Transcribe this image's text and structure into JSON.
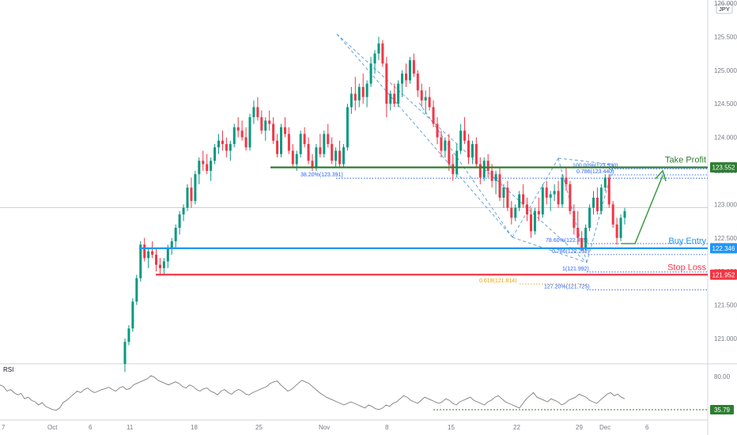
{
  "chart_data": {
    "type": "candlestick",
    "currency_label": "JPY",
    "price_axis": {
      "ticks": [
        "126.000",
        "125.500",
        "125.000",
        "124.500",
        "124.000",
        "123.500",
        "123.000",
        "122.500",
        "122.000",
        "121.500",
        "121.000"
      ],
      "range": [
        120.6,
        126.05
      ]
    },
    "rsi": {
      "label": "RSI",
      "ticks": [
        "80.00",
        "35.79"
      ],
      "values": [
        68,
        66,
        60,
        62,
        58,
        55,
        57,
        50,
        52,
        48,
        46,
        42,
        45,
        40,
        38,
        36,
        35,
        38,
        45,
        48,
        52,
        56,
        60,
        58,
        62,
        64,
        60,
        58,
        60,
        62,
        63,
        65,
        62,
        60,
        64,
        66,
        62,
        63,
        68,
        70,
        72,
        74,
        76,
        80,
        78,
        74,
        72,
        70,
        68,
        70,
        72,
        70,
        66,
        64,
        68,
        66,
        62,
        60,
        63,
        64,
        60,
        58,
        55,
        60,
        62,
        58,
        56,
        60,
        62,
        60,
        56,
        55,
        58,
        60,
        62,
        64,
        66,
        70,
        72,
        73,
        68,
        64,
        60,
        62,
        66,
        70,
        74,
        72,
        70,
        66,
        62,
        58,
        55,
        52,
        50,
        48,
        46,
        44,
        42,
        44,
        46,
        44,
        42,
        40,
        38,
        42,
        40,
        37,
        36,
        38,
        42,
        40,
        44,
        46,
        50,
        54,
        52,
        48,
        46,
        44,
        48,
        52,
        50,
        48,
        46,
        44,
        46,
        50,
        48,
        44,
        42,
        46,
        48,
        50,
        52,
        48,
        46,
        44,
        42,
        46,
        48,
        52,
        54,
        50,
        46,
        44,
        42,
        40,
        38,
        44,
        50,
        54,
        58,
        52,
        50,
        48,
        46,
        50,
        48,
        46,
        42,
        44,
        48,
        50,
        52,
        56,
        54,
        52,
        48,
        46,
        44,
        48,
        52,
        56,
        58,
        54,
        56,
        52,
        50
      ]
    },
    "x_axis_labels": [
      "7",
      "Oct",
      "6",
      "11",
      "18",
      "25",
      "Nov",
      "8",
      "15",
      "22",
      "29",
      "Dec",
      "6"
    ],
    "levels": [
      {
        "name": "Take Profit",
        "value": 123.552,
        "label": "123.552",
        "color": "#2e7d32"
      },
      {
        "name": "Buy Entry",
        "value": 122.346,
        "label": "122.346",
        "color": "#2196f3"
      },
      {
        "name": "Stop Loss",
        "value": 121.952,
        "label": "121.952",
        "color": "#f23645"
      }
    ],
    "reference_price": 122.95,
    "fib_labels": [
      {
        "text": "38.20%(123.391)",
        "value": 123.391,
        "color": "#2962ff"
      },
      {
        "text": "100.00%(123.530)",
        "value": 123.53,
        "color": "#2962ff"
      },
      {
        "text": "0.786(123.440)",
        "value": 123.44,
        "color": "#2962ff"
      },
      {
        "text": "78.60%(122.415)",
        "value": 122.415,
        "color": "#2962ff"
      },
      {
        "text": "0.786(122.252)",
        "value": 122.252,
        "color": "#2962ff"
      },
      {
        "text": "1(121.992)",
        "value": 121.992,
        "color": "#2962ff"
      },
      {
        "text": "0.618(121.814)",
        "value": 121.814,
        "color": "#f0a000"
      },
      {
        "text": "127.20%(121.725)",
        "value": 121.725,
        "color": "#2962ff"
      }
    ],
    "candles": [
      [
        120.62,
        121.0,
        120.5,
        120.95
      ],
      [
        120.95,
        121.2,
        120.9,
        121.15
      ],
      [
        121.15,
        121.6,
        121.1,
        121.55
      ],
      [
        121.55,
        121.95,
        121.5,
        121.9
      ],
      [
        121.9,
        122.45,
        121.85,
        122.4
      ],
      [
        122.4,
        122.5,
        122.15,
        122.2
      ],
      [
        122.2,
        122.35,
        122.05,
        122.3
      ],
      [
        122.3,
        122.45,
        122.2,
        122.25
      ],
      [
        122.25,
        122.35,
        122.0,
        122.1
      ],
      [
        122.1,
        122.2,
        121.95,
        122.05
      ],
      [
        122.05,
        122.2,
        121.95,
        122.15
      ],
      [
        122.15,
        122.4,
        122.05,
        122.35
      ],
      [
        122.35,
        122.5,
        122.25,
        122.45
      ],
      [
        122.45,
        122.7,
        122.35,
        122.65
      ],
      [
        122.65,
        122.9,
        122.55,
        122.85
      ],
      [
        122.85,
        123.0,
        122.75,
        122.95
      ],
      [
        122.95,
        123.3,
        122.9,
        123.25
      ],
      [
        123.25,
        123.4,
        122.95,
        123.05
      ],
      [
        123.05,
        123.5,
        123.0,
        123.45
      ],
      [
        123.45,
        123.7,
        123.3,
        123.65
      ],
      [
        123.65,
        123.8,
        123.5,
        123.6
      ],
      [
        123.6,
        123.75,
        123.45,
        123.5
      ],
      [
        123.5,
        123.7,
        123.35,
        123.65
      ],
      [
        123.65,
        123.9,
        123.6,
        123.85
      ],
      [
        123.85,
        124.05,
        123.75,
        123.95
      ],
      [
        123.95,
        124.1,
        123.8,
        123.9
      ],
      [
        123.9,
        124.0,
        123.7,
        123.8
      ],
      [
        123.8,
        123.95,
        123.65,
        123.9
      ],
      [
        123.9,
        124.2,
        123.85,
        124.15
      ],
      [
        124.15,
        124.3,
        124.0,
        124.1
      ],
      [
        124.1,
        124.25,
        123.95,
        124.0
      ],
      [
        124.0,
        124.15,
        123.8,
        123.85
      ],
      [
        123.85,
        124.35,
        123.8,
        124.3
      ],
      [
        124.3,
        124.55,
        124.2,
        124.45
      ],
      [
        124.45,
        124.6,
        124.25,
        124.3
      ],
      [
        124.3,
        124.4,
        124.05,
        124.1
      ],
      [
        124.1,
        124.3,
        123.95,
        124.25
      ],
      [
        124.25,
        124.4,
        124.1,
        124.2
      ],
      [
        124.2,
        124.3,
        123.9,
        123.95
      ],
      [
        123.95,
        124.05,
        123.7,
        123.75
      ],
      [
        123.75,
        124.2,
        123.7,
        124.15
      ],
      [
        124.15,
        124.3,
        124.0,
        124.05
      ],
      [
        124.05,
        124.15,
        123.75,
        123.8
      ],
      [
        123.8,
        123.9,
        123.55,
        123.6
      ],
      [
        123.6,
        123.8,
        123.5,
        123.75
      ],
      [
        123.75,
        124.1,
        123.7,
        124.05
      ],
      [
        124.05,
        124.15,
        123.85,
        123.9
      ],
      [
        123.9,
        124.0,
        123.6,
        123.65
      ],
      [
        123.65,
        123.75,
        123.5,
        123.55
      ],
      [
        123.55,
        123.9,
        123.5,
        123.85
      ],
      [
        123.85,
        124.05,
        123.7,
        123.75
      ],
      [
        123.75,
        124.1,
        123.7,
        124.05
      ],
      [
        124.05,
        124.2,
        123.85,
        123.9
      ],
      [
        123.9,
        124.0,
        123.6,
        123.65
      ],
      [
        123.65,
        123.85,
        123.55,
        123.8
      ],
      [
        123.8,
        123.95,
        123.55,
        123.6
      ],
      [
        123.6,
        123.9,
        123.55,
        123.85
      ],
      [
        123.85,
        124.5,
        123.8,
        124.45
      ],
      [
        124.45,
        124.75,
        124.35,
        124.65
      ],
      [
        124.65,
        124.9,
        124.4,
        124.55
      ],
      [
        124.55,
        124.8,
        124.45,
        124.75
      ],
      [
        124.75,
        124.95,
        124.5,
        124.6
      ],
      [
        124.6,
        124.85,
        124.45,
        124.8
      ],
      [
        124.8,
        125.2,
        124.75,
        125.1
      ],
      [
        125.1,
        125.3,
        124.95,
        125.25
      ],
      [
        125.25,
        125.5,
        125.15,
        125.4
      ],
      [
        125.4,
        125.45,
        125.05,
        125.1
      ],
      [
        125.1,
        125.2,
        124.3,
        124.5
      ],
      [
        124.5,
        124.7,
        124.4,
        124.65
      ],
      [
        124.65,
        124.8,
        124.45,
        124.5
      ],
      [
        124.5,
        124.85,
        124.45,
        124.8
      ],
      [
        124.8,
        125.0,
        124.6,
        124.95
      ],
      [
        124.95,
        125.1,
        124.75,
        124.85
      ],
      [
        124.85,
        125.2,
        124.8,
        125.15
      ],
      [
        125.15,
        125.25,
        124.9,
        124.95
      ],
      [
        124.95,
        125.0,
        124.6,
        124.7
      ],
      [
        124.7,
        124.8,
        124.45,
        124.55
      ],
      [
        124.55,
        124.7,
        124.35,
        124.6
      ],
      [
        124.6,
        124.75,
        124.4,
        124.45
      ],
      [
        124.45,
        124.55,
        124.15,
        124.2
      ],
      [
        124.2,
        124.3,
        123.9,
        124.0
      ],
      [
        124.0,
        124.1,
        123.7,
        123.8
      ],
      [
        123.8,
        124.0,
        123.7,
        123.95
      ],
      [
        123.95,
        124.05,
        123.5,
        123.6
      ],
      [
        123.6,
        123.75,
        123.35,
        123.45
      ],
      [
        123.45,
        123.9,
        123.4,
        123.8
      ],
      [
        123.8,
        124.2,
        123.75,
        124.1
      ],
      [
        124.1,
        124.3,
        123.9,
        123.95
      ],
      [
        123.95,
        124.05,
        123.6,
        123.7
      ],
      [
        123.7,
        123.95,
        123.6,
        123.9
      ],
      [
        123.9,
        124.0,
        123.55,
        123.6
      ],
      [
        123.6,
        123.7,
        123.3,
        123.4
      ],
      [
        123.4,
        123.7,
        123.35,
        123.65
      ],
      [
        123.65,
        123.75,
        123.4,
        123.5
      ],
      [
        123.5,
        123.6,
        123.25,
        123.35
      ],
      [
        123.35,
        123.5,
        123.15,
        123.45
      ],
      [
        123.45,
        123.55,
        123.05,
        123.1
      ],
      [
        123.1,
        123.3,
        122.95,
        123.25
      ],
      [
        123.25,
        123.35,
        122.9,
        122.95
      ],
      [
        122.95,
        123.05,
        122.7,
        122.8
      ],
      [
        122.8,
        123.0,
        122.75,
        122.95
      ],
      [
        122.95,
        123.2,
        122.9,
        123.15
      ],
      [
        123.15,
        123.3,
        122.95,
        123.0
      ],
      [
        123.0,
        123.1,
        122.75,
        122.85
      ],
      [
        122.85,
        122.95,
        122.5,
        122.6
      ],
      [
        122.6,
        122.95,
        122.55,
        122.9
      ],
      [
        122.9,
        123.1,
        122.75,
        122.85
      ],
      [
        122.85,
        123.3,
        122.8,
        123.25
      ],
      [
        123.25,
        123.35,
        123.0,
        123.1
      ],
      [
        123.1,
        123.2,
        122.9,
        123.15
      ],
      [
        123.15,
        123.3,
        123.05,
        123.2
      ],
      [
        123.2,
        123.35,
        122.95,
        123.0
      ],
      [
        123.0,
        123.45,
        122.95,
        123.4
      ],
      [
        123.4,
        123.55,
        123.2,
        123.3
      ],
      [
        123.3,
        123.35,
        122.85,
        122.9
      ],
      [
        122.9,
        123.0,
        122.55,
        122.65
      ],
      [
        122.65,
        122.9,
        122.4,
        122.5
      ],
      [
        122.5,
        122.6,
        122.3,
        122.35
      ],
      [
        122.35,
        122.7,
        122.3,
        122.65
      ],
      [
        122.65,
        123.0,
        122.6,
        122.95
      ],
      [
        122.95,
        123.2,
        122.85,
        123.1
      ],
      [
        123.1,
        123.25,
        122.85,
        122.9
      ],
      [
        122.9,
        123.3,
        122.85,
        123.25
      ],
      [
        123.25,
        123.45,
        123.2,
        123.4
      ],
      [
        123.4,
        123.45,
        122.95,
        123.0
      ],
      [
        123.0,
        123.05,
        122.65,
        122.7
      ],
      [
        122.7,
        122.8,
        122.4,
        122.5
      ],
      [
        122.5,
        122.85,
        122.45,
        122.8
      ],
      [
        122.8,
        122.95,
        122.7,
        122.9
      ]
    ]
  }
}
